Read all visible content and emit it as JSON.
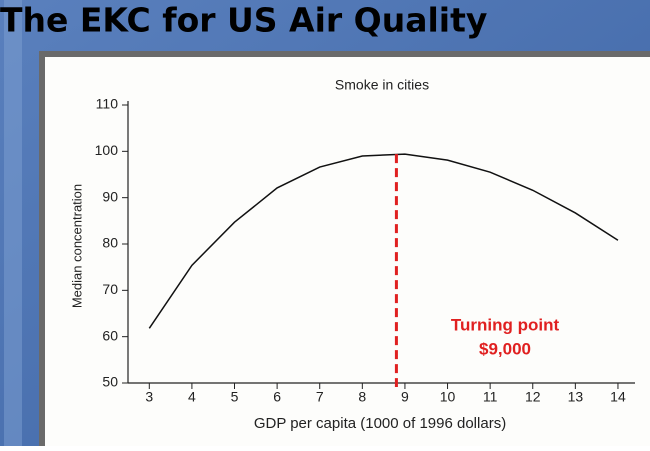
{
  "slide_title": "The EKC for US Air Quality",
  "chart_data": {
    "type": "line",
    "title": "Smoke in cities",
    "x_label": "GDP  per capita (1000 of 1996 dollars)",
    "y_label": "Median concentration",
    "x": [
      3,
      4,
      5,
      6,
      7,
      8,
      9,
      10,
      11,
      12,
      13,
      14
    ],
    "series": [
      {
        "color": "#111111",
        "values": [
          61.8,
          75.4,
          84.7,
          92.1,
          96.6,
          99.0,
          99.4,
          98.1,
          95.5,
          91.6,
          86.7,
          80.8
        ]
      }
    ],
    "xlim": [
      2.5,
      14.4
    ],
    "xticks": [
      3,
      4,
      5,
      6,
      7,
      8,
      9,
      10,
      11,
      12,
      13,
      14
    ],
    "ylim": [
      50,
      110
    ],
    "yticks": [
      50,
      60,
      70,
      80,
      90,
      100,
      110
    ],
    "vline": {
      "x": 8.8,
      "color": "#e02020"
    },
    "annotation": [
      "Turning point",
      "$9,000"
    ],
    "annotation_color": "#e02020"
  }
}
